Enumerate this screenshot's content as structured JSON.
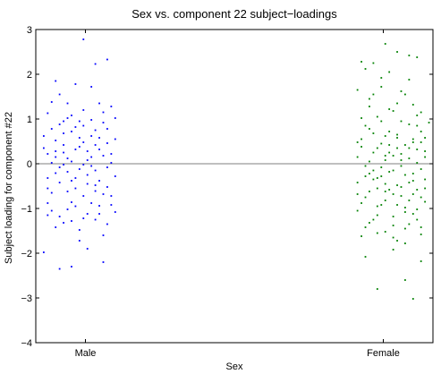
{
  "chart_data": {
    "type": "scatter",
    "title": "Sex vs. component 22 subject−loadings",
    "xlabel": "Sex",
    "ylabel": "Subject loading for component #22",
    "categories": [
      "Male",
      "Female"
    ],
    "ylim": [
      -4,
      3
    ],
    "yticks": [
      -4,
      -3,
      -2,
      -1,
      0,
      1,
      2,
      3
    ],
    "ytick_labels": [
      "−4",
      "−3",
      "−2",
      "−1",
      "0",
      "1",
      "2",
      "3"
    ],
    "reference_line_y": 0,
    "grid": false,
    "legend": "none",
    "series": [
      {
        "category": "Male",
        "color": "#0000ff",
        "points": [
          [
            0.03,
            1.13
          ],
          [
            0.06,
            -2.35
          ],
          [
            0.09,
            -2.3
          ],
          [
            0.12,
            2.78
          ],
          [
            0.15,
            2.23
          ],
          [
            0.18,
            2.33
          ],
          [
            0.05,
            1.85
          ],
          [
            0.08,
            1.35
          ],
          [
            0.13,
            -1.9
          ],
          [
            0.17,
            -2.2
          ],
          [
            0.02,
            -1.98
          ],
          [
            0.1,
            1.78
          ],
          [
            0.14,
            1.72
          ],
          [
            0.04,
            0.78
          ],
          [
            0.07,
            0.42
          ],
          [
            0.11,
            0.95
          ],
          [
            0.16,
            0.58
          ],
          [
            0.19,
            0.22
          ],
          [
            0.03,
            -0.55
          ],
          [
            0.09,
            -0.86
          ],
          [
            0.12,
            -1.22
          ],
          [
            0.15,
            -0.61
          ],
          [
            0.18,
            -1.35
          ],
          [
            0.06,
            -1.18
          ],
          [
            0.1,
            -0.32
          ],
          [
            0.13,
            0.28
          ],
          [
            0.17,
            0.92
          ],
          [
            0.2,
            1.02
          ],
          [
            0.08,
            0.12
          ],
          [
            0.14,
            -0.05
          ],
          [
            0.05,
            -0.21
          ],
          [
            0.11,
            -1.48
          ],
          [
            0.16,
            -0.94
          ],
          [
            0.02,
            0.35
          ],
          [
            0.19,
            -0.72
          ],
          [
            0.07,
            0.68
          ],
          [
            0.12,
            1.2
          ],
          [
            0.15,
            -0.15
          ],
          [
            0.04,
            -1.05
          ],
          [
            0.18,
            0.46
          ],
          [
            0.09,
            0.05
          ],
          [
            0.13,
            -0.45
          ],
          [
            0.06,
            1.55
          ],
          [
            0.17,
            -1.6
          ],
          [
            0.1,
            0.82
          ],
          [
            0.03,
            -0.88
          ],
          [
            0.14,
            0.62
          ],
          [
            0.2,
            -0.28
          ],
          [
            0.08,
            -0.62
          ],
          [
            0.11,
            0.38
          ],
          [
            0.16,
            1.35
          ],
          [
            0.05,
            0.15
          ],
          [
            0.12,
            -0.72
          ],
          [
            0.18,
            -0.08
          ],
          [
            0.07,
            -1.32
          ],
          [
            0.15,
            0.75
          ],
          [
            0.09,
            1.08
          ],
          [
            0.02,
            0.62
          ],
          [
            0.19,
            1.28
          ],
          [
            0.13,
            -1.12
          ],
          [
            0.06,
            -0.42
          ],
          [
            0.17,
            0.18
          ],
          [
            0.04,
            1.38
          ],
          [
            0.1,
            -0.95
          ],
          [
            0.14,
            0.98
          ],
          [
            0.08,
            -0.18
          ],
          [
            0.11,
            -1.72
          ],
          [
            0.16,
            -0.38
          ],
          [
            0.03,
            0.22
          ],
          [
            0.12,
            0.48
          ],
          [
            0.18,
            -0.52
          ],
          [
            0.07,
            -0.02
          ],
          [
            0.15,
            -1.25
          ],
          [
            0.09,
            0.72
          ],
          [
            0.05,
            -1.42
          ],
          [
            0.13,
            0.08
          ],
          [
            0.2,
            0.55
          ],
          [
            0.06,
            0.88
          ],
          [
            0.17,
            -0.68
          ],
          [
            0.1,
            -0.55
          ],
          [
            0.04,
            0.02
          ],
          [
            0.14,
            -0.88
          ],
          [
            0.19,
            0.02
          ],
          [
            0.08,
            1.02
          ],
          [
            0.11,
            -0.12
          ],
          [
            0.16,
            0.32
          ],
          [
            0.03,
            -1.15
          ],
          [
            0.12,
            0.85
          ],
          [
            0.07,
            0.25
          ],
          [
            0.15,
            0.42
          ],
          [
            0.09,
            -0.38
          ],
          [
            0.18,
            0.78
          ],
          [
            0.05,
            0.52
          ],
          [
            0.13,
            -0.25
          ],
          [
            0.2,
            -1.08
          ],
          [
            0.06,
            -0.08
          ],
          [
            0.17,
            1.15
          ],
          [
            0.1,
            0.32
          ],
          [
            0.04,
            -0.65
          ],
          [
            0.14,
            0.15
          ],
          [
            0.08,
            -1.02
          ],
          [
            0.11,
            0.58
          ],
          [
            0.16,
            -1.12
          ],
          [
            0.03,
            -0.32
          ],
          [
            0.12,
            -0.02
          ],
          [
            0.19,
            -0.92
          ],
          [
            0.07,
            0.95
          ],
          [
            0.15,
            -0.48
          ],
          [
            0.09,
            -1.28
          ],
          [
            0.05,
            0.28
          ]
        ]
      },
      {
        "category": "Female",
        "color": "#008000",
        "points": [
          [
            0.88,
            2.68
          ],
          [
            0.91,
            2.5
          ],
          [
            0.94,
            2.42
          ],
          [
            0.82,
            2.28
          ],
          [
            0.85,
            2.25
          ],
          [
            0.96,
            2.38
          ],
          [
            0.89,
            2.05
          ],
          [
            0.93,
            -2.6
          ],
          [
            0.86,
            -2.8
          ],
          [
            0.95,
            -3.02
          ],
          [
            0.83,
            -2.08
          ],
          [
            0.9,
            -1.92
          ],
          [
            0.97,
            -2.18
          ],
          [
            0.81,
            1.65
          ],
          [
            0.84,
            1.28
          ],
          [
            0.87,
            0.95
          ],
          [
            0.9,
            1.18
          ],
          [
            0.93,
            1.55
          ],
          [
            0.96,
            0.85
          ],
          [
            0.82,
            0.55
          ],
          [
            0.85,
            0.25
          ],
          [
            0.88,
            0.62
          ],
          [
            0.91,
            0.35
          ],
          [
            0.94,
            0.12
          ],
          [
            0.97,
            0.48
          ],
          [
            0.83,
            -0.28
          ],
          [
            0.86,
            -0.55
          ],
          [
            0.89,
            -0.18
          ],
          [
            0.92,
            -0.72
          ],
          [
            0.95,
            -0.38
          ],
          [
            0.98,
            -0.85
          ],
          [
            0.81,
            -1.05
          ],
          [
            0.84,
            -1.32
          ],
          [
            0.87,
            -0.92
          ],
          [
            0.9,
            -1.18
          ],
          [
            0.93,
            -1.45
          ],
          [
            0.96,
            -1.02
          ],
          [
            0.82,
            -1.62
          ],
          [
            0.85,
            -1.25
          ],
          [
            0.88,
            -1.52
          ],
          [
            0.91,
            -1.72
          ],
          [
            0.94,
            -1.35
          ],
          [
            0.97,
            -1.58
          ],
          [
            0.83,
            0.85
          ],
          [
            0.86,
            1.05
          ],
          [
            0.89,
            0.72
          ],
          [
            0.92,
            0.95
          ],
          [
            0.95,
            1.32
          ],
          [
            0.98,
            0.58
          ],
          [
            0.84,
            0.05
          ],
          [
            0.87,
            -0.08
          ],
          [
            0.9,
            0.18
          ],
          [
            0.93,
            -0.25
          ],
          [
            0.96,
            0.32
          ],
          [
            0.81,
            -0.42
          ],
          [
            0.88,
            -0.62
          ],
          [
            0.91,
            -0.48
          ],
          [
            0.94,
            -0.82
          ],
          [
            0.97,
            -0.12
          ],
          [
            0.82,
            0.38
          ],
          [
            0.85,
            0.68
          ],
          [
            0.89,
            0.42
          ],
          [
            0.92,
            0.22
          ],
          [
            0.95,
            0.55
          ],
          [
            0.98,
            -0.35
          ],
          [
            0.83,
            -0.75
          ],
          [
            0.86,
            -0.95
          ],
          [
            0.9,
            -0.68
          ],
          [
            0.93,
            -1.08
          ],
          [
            0.96,
            -0.58
          ],
          [
            0.84,
            1.45
          ],
          [
            0.87,
            1.72
          ],
          [
            0.91,
            1.35
          ],
          [
            0.94,
            1.88
          ],
          [
            0.97,
            1.15
          ],
          [
            0.81,
            0.15
          ],
          [
            0.85,
            -0.15
          ],
          [
            0.88,
            0.08
          ],
          [
            0.92,
            -0.05
          ],
          [
            0.95,
            -0.22
          ],
          [
            0.98,
            0.28
          ],
          [
            0.83,
            -1.42
          ],
          [
            0.86,
            -1.15
          ],
          [
            0.9,
            -1.38
          ],
          [
            0.93,
            -0.98
          ],
          [
            0.96,
            -1.25
          ],
          [
            0.82,
            1.02
          ],
          [
            0.84,
            0.78
          ],
          [
            0.87,
            0.45
          ],
          [
            0.91,
            0.65
          ],
          [
            0.94,
            0.88
          ],
          [
            0.97,
            0.72
          ],
          [
            0.85,
            -0.35
          ],
          [
            0.88,
            -0.45
          ],
          [
            0.92,
            -0.52
          ],
          [
            0.95,
            -0.68
          ],
          [
            0.98,
            -0.55
          ],
          [
            0.81,
            0.48
          ],
          [
            0.86,
            0.35
          ],
          [
            0.89,
            0.25
          ],
          [
            0.93,
            0.42
          ],
          [
            0.96,
            0.02
          ],
          [
            0.83,
            -0.05
          ],
          [
            0.87,
            -0.28
          ],
          [
            0.9,
            -0.15
          ],
          [
            0.94,
            -0.42
          ],
          [
            0.97,
            -0.75
          ],
          [
            0.84,
            -0.62
          ],
          [
            0.88,
            -0.82
          ],
          [
            0.91,
            -0.92
          ],
          [
            0.95,
            -1.12
          ],
          [
            0.82,
            -0.88
          ],
          [
            0.85,
            1.55
          ],
          [
            0.89,
            1.22
          ],
          [
            0.92,
            1.62
          ],
          [
            0.96,
            1.08
          ],
          [
            0.99,
            0.92
          ],
          [
            0.86,
            -1.55
          ],
          [
            0.9,
            -1.65
          ],
          [
            0.93,
            -1.78
          ],
          [
            0.97,
            -1.42
          ],
          [
            0.83,
            2.12
          ],
          [
            0.87,
            1.92
          ],
          [
            0.91,
            0.58
          ],
          [
            0.94,
            0.35
          ],
          [
            0.98,
            0.15
          ],
          [
            0.84,
            -0.22
          ],
          [
            0.88,
            0.18
          ],
          [
            0.92,
            0.08
          ],
          [
            0.95,
            0.48
          ],
          [
            0.81,
            -0.68
          ],
          [
            0.86,
            -0.32
          ],
          [
            0.89,
            -0.58
          ]
        ]
      }
    ]
  }
}
